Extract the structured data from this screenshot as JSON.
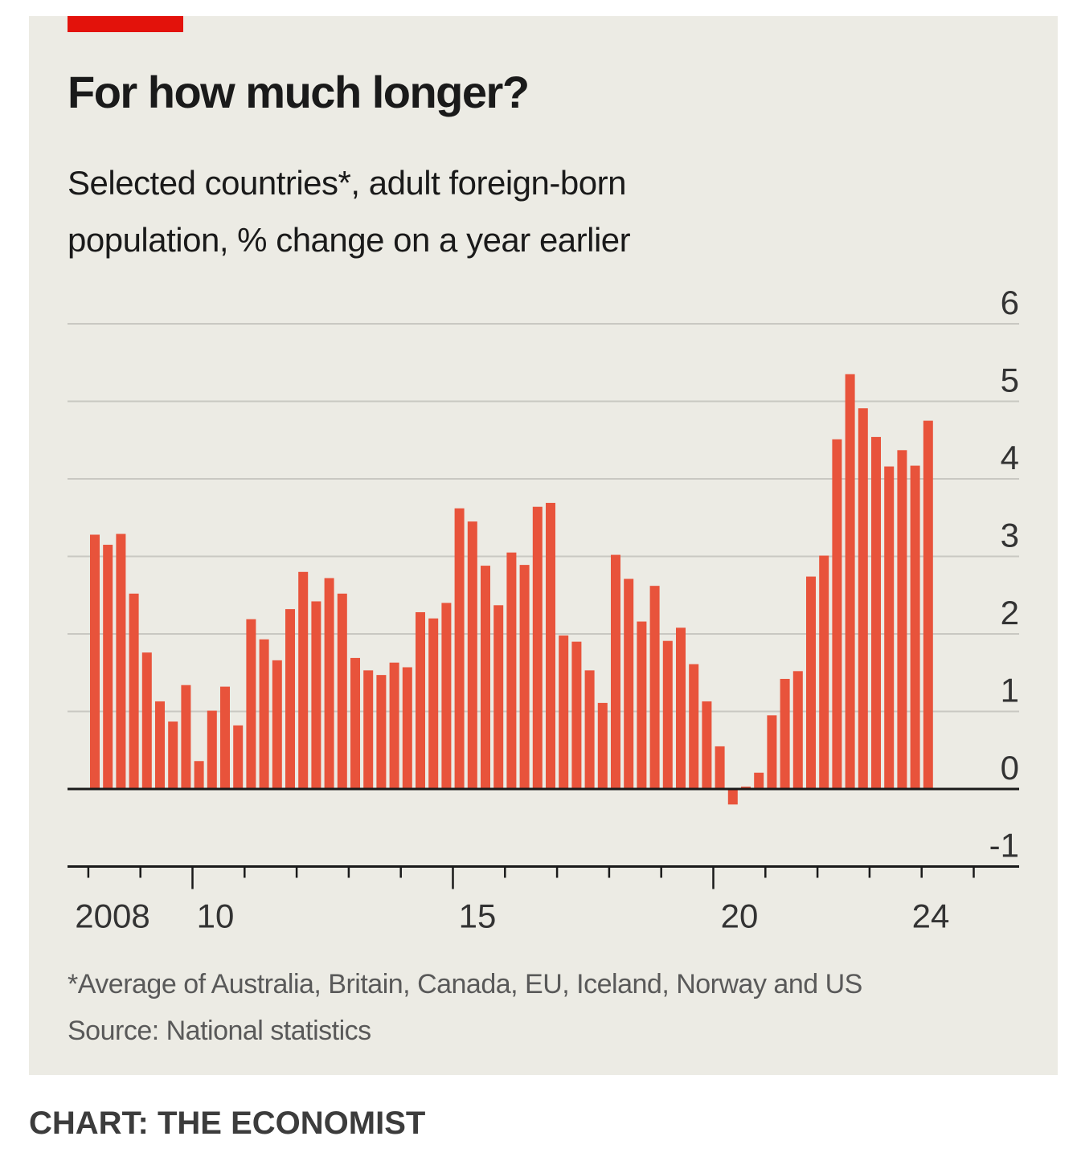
{
  "title": "For how much longer?",
  "subtitle": [
    "Selected countries*, adult foreign-born",
    "population, % change on a year earlier"
  ],
  "footnote": "*Average of Australia, Britain, Canada, EU, Iceland, Norway and US",
  "source": "Source: National statistics",
  "credit": "CHART: THE ECONOMIST",
  "colors": {
    "bar": "#e8533b",
    "accent": "#e3120b",
    "grid": "#c9c8c2",
    "axis": "#1a1a1a"
  },
  "chart_data": {
    "type": "bar",
    "x": [
      "2008 Q1",
      "2008 Q2",
      "2008 Q3",
      "2008 Q4",
      "2009 Q1",
      "2009 Q2",
      "2009 Q3",
      "2009 Q4",
      "2010 Q1",
      "2010 Q2",
      "2010 Q3",
      "2010 Q4",
      "2011 Q1",
      "2011 Q2",
      "2011 Q3",
      "2011 Q4",
      "2012 Q1",
      "2012 Q2",
      "2012 Q3",
      "2012 Q4",
      "2013 Q1",
      "2013 Q2",
      "2013 Q3",
      "2013 Q4",
      "2014 Q1",
      "2014 Q2",
      "2014 Q3",
      "2014 Q4",
      "2015 Q1",
      "2015 Q2",
      "2015 Q3",
      "2015 Q4",
      "2016 Q1",
      "2016 Q2",
      "2016 Q3",
      "2016 Q4",
      "2017 Q1",
      "2017 Q2",
      "2017 Q3",
      "2017 Q4",
      "2018 Q1",
      "2018 Q2",
      "2018 Q3",
      "2018 Q4",
      "2019 Q1",
      "2019 Q2",
      "2019 Q3",
      "2019 Q4",
      "2020 Q1",
      "2020 Q2",
      "2020 Q3",
      "2020 Q4",
      "2021 Q1",
      "2021 Q2",
      "2021 Q3",
      "2021 Q4",
      "2022 Q1",
      "2022 Q2",
      "2022 Q3",
      "2022 Q4",
      "2023 Q1",
      "2023 Q2",
      "2023 Q3",
      "2023 Q4",
      "2024 Q1"
    ],
    "values": [
      3.28,
      3.15,
      3.29,
      2.52,
      1.76,
      1.13,
      0.87,
      1.34,
      0.36,
      1.01,
      1.32,
      0.82,
      2.19,
      1.93,
      1.66,
      2.32,
      2.8,
      2.42,
      2.72,
      2.52,
      1.69,
      1.53,
      1.47,
      1.63,
      1.57,
      2.28,
      2.2,
      2.4,
      3.62,
      3.45,
      2.88,
      2.37,
      3.05,
      2.89,
      3.64,
      3.69,
      1.98,
      1.9,
      1.53,
      1.11,
      3.02,
      2.71,
      2.16,
      2.62,
      1.91,
      2.08,
      1.61,
      1.13,
      0.55,
      -0.2,
      0.03,
      0.21,
      0.95,
      1.42,
      1.52,
      2.74,
      3.01,
      4.51,
      5.35,
      4.91,
      4.54,
      4.16,
      4.37,
      4.17,
      4.75
    ],
    "yticks": [
      6,
      5,
      4,
      3,
      2,
      1,
      0,
      -1
    ],
    "ylim": [
      -1,
      6
    ],
    "xtick_labels": [
      "2008",
      "10",
      "15",
      "20",
      "24"
    ],
    "grid": true,
    "xlabel": "",
    "ylabel": ""
  }
}
